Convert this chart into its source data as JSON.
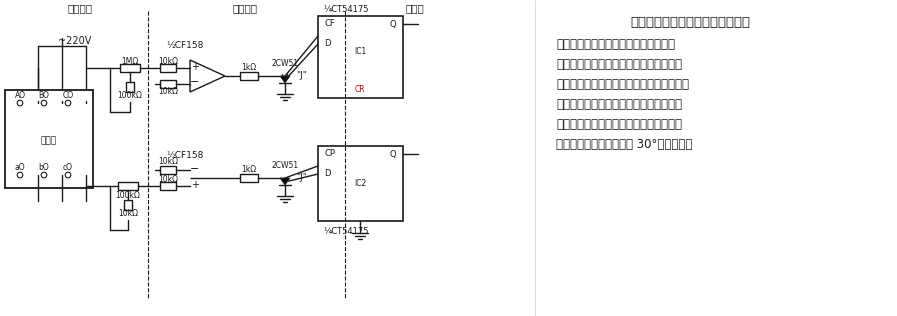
{
  "title": "变压器联接组别自动判断取样电路",
  "text_lines": [
    "变压器的连接组别是指测定初级线电势",
    "与二次电势之间的相位关系。本电路采用",
    "接入电阻的方法来获取任意一组对应的初、",
    "次测线正弦电势。通过有限幅的过零比较",
    "器变换成方波后进行相位比较，确定连接",
    "组别初次测的相位差总是 30°的整倍数。"
  ],
  "section_labels": [
    "信号取样",
    "波形变换",
    "控制器"
  ],
  "cf158_label1": "½CF158",
  "cf158_label2": "½CF158",
  "ct54175_label1": "¼CT54175",
  "ct54175_label2": "¼CT54175",
  "resistors_upper": [
    "1MΩ",
    "100kΩ",
    "10kΩ",
    "10kΩ",
    "1kΩ"
  ],
  "resistors_lower": [
    "100kΩ",
    "10kΩ",
    "10kΩ",
    "10kΩ",
    "1kΩ"
  ],
  "diode_labels": [
    "2CW51",
    "2CW51"
  ],
  "j_labels": [
    "\"J\"",
    "\"J\""
  ],
  "ic1_labels": [
    "CF",
    "Q",
    "IC1",
    "D",
    "CR"
  ],
  "ic2_labels": [
    "CP",
    "Q",
    "IC2",
    "D"
  ],
  "voltage_label": "~220V",
  "transformer_label": "变压器",
  "transformer_upper": [
    "AO",
    "BO",
    "CO"
  ],
  "transformer_lower": [
    "aO",
    "bO",
    "cO"
  ],
  "bg_color": "#ffffff",
  "lc": "#1a1a1a",
  "rc": "#cc0000"
}
